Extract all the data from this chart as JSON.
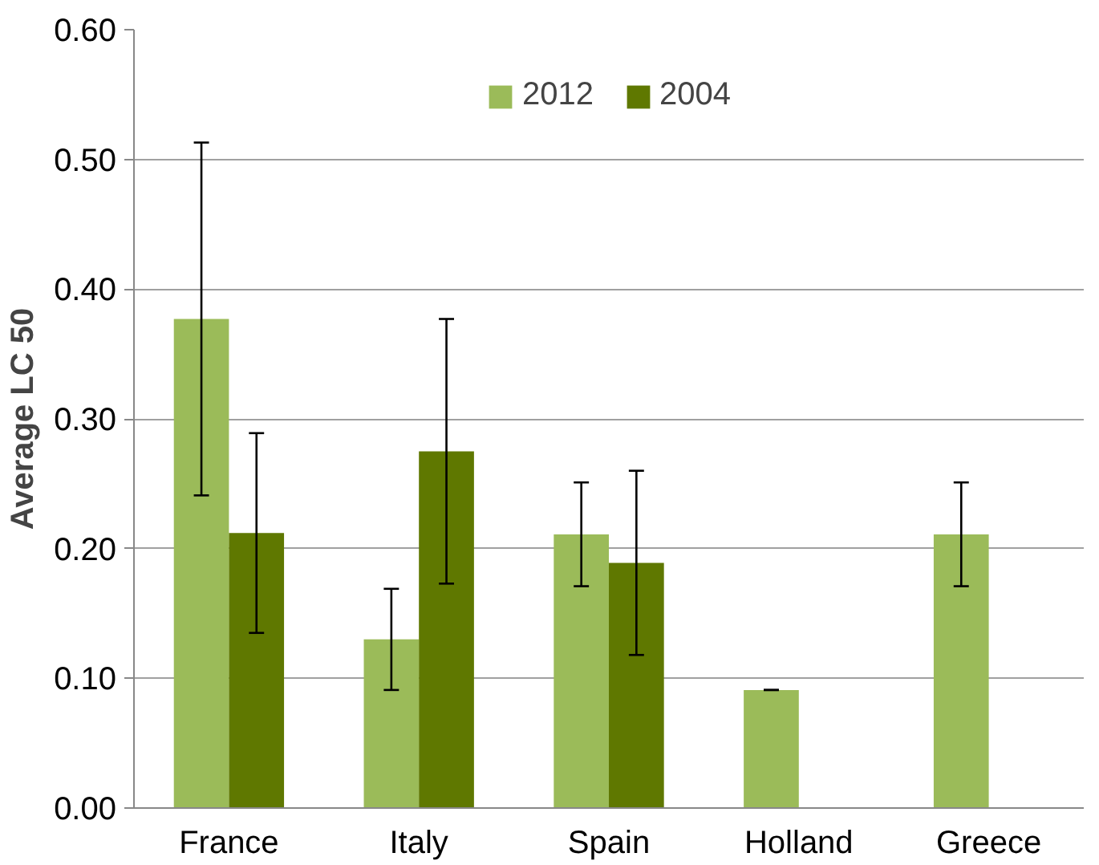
{
  "chart_data": {
    "type": "bar",
    "ylabel": "Average LC 50",
    "categories": [
      "France",
      "Italy",
      "Spain",
      "Holland",
      "Greece"
    ],
    "series": [
      {
        "name": "2012",
        "color": "#9bbb59",
        "values": [
          0.377,
          0.13,
          0.211,
          0.091,
          0.211
        ],
        "errors": [
          0.136,
          0.039,
          0.04,
          0,
          0.04
        ]
      },
      {
        "name": "2004",
        "color": "#5f7800",
        "values": [
          0.212,
          0.275,
          0.189,
          null,
          null
        ],
        "errors": [
          0.077,
          0.102,
          0.071,
          null,
          null
        ]
      }
    ],
    "ylim": [
      0,
      0.6
    ],
    "yticks": [
      {
        "value": 0,
        "label": "0.00"
      },
      {
        "value": 0.1,
        "label": "0.10"
      },
      {
        "value": 0.2,
        "label": "0.20"
      },
      {
        "value": 0.3,
        "label": "0.30"
      },
      {
        "value": 0.4,
        "label": "0.40"
      },
      {
        "value": 0.5,
        "label": "0.50"
      },
      {
        "value": 0.6,
        "label": "0.60"
      }
    ],
    "grid": "y",
    "legend": "top"
  }
}
